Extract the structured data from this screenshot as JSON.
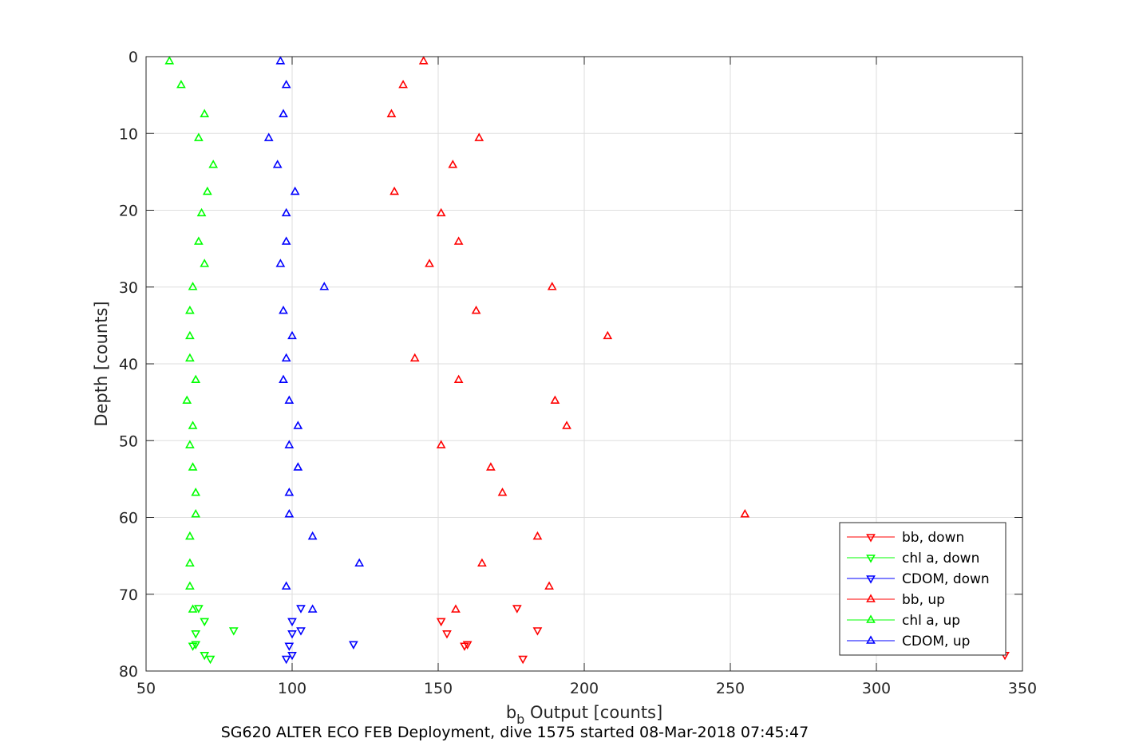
{
  "chart_data": {
    "type": "scatter",
    "xlabel_main": "b",
    "xlabel_sub": "b",
    "xlabel_rest": " Output [counts]",
    "ylabel": "Depth [counts]",
    "caption": "SG620 ALTER ECO FEB Deployment, dive 1575 started 08-Mar-2018 07:45:47",
    "xlim": [
      50,
      350
    ],
    "ylim": [
      0,
      80
    ],
    "y_reversed": true,
    "grid": true,
    "legend_placement": "bottom-right",
    "xticks": [
      "50",
      "100",
      "150",
      "200",
      "250",
      "300",
      "350"
    ],
    "yticks": [
      "0",
      "10",
      "20",
      "30",
      "40",
      "50",
      "60",
      "70",
      "80"
    ],
    "colors": {
      "red": "#ff0000",
      "green": "#00ff00",
      "blue": "#0000ff"
    },
    "series": [
      {
        "name": "bb, down",
        "color": "#ff0000",
        "marker": "triangle-down",
        "x": [
          177,
          151,
          184,
          153,
          160,
          159,
          179,
          344
        ],
        "y": [
          71.8,
          73.5,
          74.7,
          75.1,
          76.5,
          76.7,
          78.4,
          77.9
        ]
      },
      {
        "name": "chl a, down",
        "color": "#00ff00",
        "marker": "triangle-down",
        "x": [
          68,
          70,
          80,
          67,
          67,
          66,
          70,
          72
        ],
        "y": [
          71.8,
          73.5,
          74.7,
          75.1,
          76.5,
          76.7,
          77.9,
          78.4
        ]
      },
      {
        "name": "CDOM, down",
        "color": "#0000ff",
        "marker": "triangle-down",
        "x": [
          103,
          100,
          103,
          100,
          121,
          99,
          100,
          98
        ],
        "y": [
          71.8,
          73.5,
          74.7,
          75.1,
          76.5,
          76.7,
          77.9,
          78.4
        ]
      },
      {
        "name": "bb, up",
        "color": "#ff0000",
        "marker": "triangle-up",
        "x": [
          145,
          138,
          134,
          164,
          155,
          135,
          151,
          157,
          147,
          189,
          163,
          208,
          142,
          157,
          190,
          194,
          151,
          168,
          172,
          255,
          184,
          165,
          188,
          156
        ],
        "y": [
          0.6,
          3.7,
          7.5,
          10.6,
          14.1,
          17.6,
          20.4,
          24.1,
          27.0,
          30.0,
          33.1,
          36.4,
          39.3,
          42.1,
          44.8,
          48.1,
          50.6,
          53.5,
          56.8,
          59.6,
          62.5,
          66.0,
          69.0,
          72.0
        ]
      },
      {
        "name": "chl a, up",
        "color": "#00ff00",
        "marker": "triangle-up",
        "x": [
          58,
          62,
          70,
          68,
          73,
          71,
          69,
          68,
          70,
          66,
          65,
          65,
          65,
          67,
          64,
          66,
          65,
          66,
          67,
          67,
          65,
          65,
          65,
          66
        ],
        "y": [
          0.6,
          3.7,
          7.5,
          10.6,
          14.1,
          17.6,
          20.4,
          24.1,
          27.0,
          30.0,
          33.1,
          36.4,
          39.3,
          42.1,
          44.8,
          48.1,
          50.6,
          53.5,
          56.8,
          59.6,
          62.5,
          66.0,
          69.0,
          72.0
        ]
      },
      {
        "name": "CDOM, up",
        "color": "#0000ff",
        "marker": "triangle-up",
        "x": [
          96,
          98,
          97,
          92,
          95,
          101,
          98,
          98,
          96,
          111,
          97,
          100,
          98,
          97,
          99,
          102,
          99,
          102,
          99,
          99,
          107,
          123,
          98,
          107
        ],
        "y": [
          0.6,
          3.7,
          7.5,
          10.6,
          14.1,
          17.6,
          20.4,
          24.1,
          27.0,
          30.0,
          33.1,
          36.4,
          39.3,
          42.1,
          44.8,
          48.1,
          50.6,
          53.5,
          56.8,
          59.6,
          62.5,
          66.0,
          69.0,
          72.0
        ]
      }
    ]
  }
}
